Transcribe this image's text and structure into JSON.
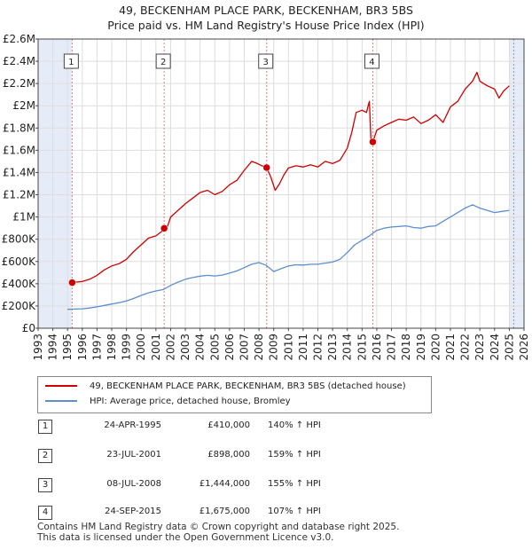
{
  "title_line1": "49, BECKENHAM PLACE PARK, BECKENHAM, BR3 5BS",
  "title_line2": "Price paid vs. HM Land Registry's House Price Index (HPI)",
  "legend": {
    "property_label": "49, BECKENHAM PLACE PARK, BECKENHAM, BR3 5BS (detached house)",
    "hpi_label": "HPI: Average price, detached house, Bromley"
  },
  "colors": {
    "property": "#cc0000",
    "hpi": "#5b8fd0",
    "shade": "#e6ecf7",
    "vline": "#e08080",
    "grid": "#dddddd"
  },
  "sales": [
    {
      "num": "1",
      "date": "24-APR-1995",
      "price": "£410,000",
      "hpi_change": "140% ↑ HPI"
    },
    {
      "num": "2",
      "date": "23-JUL-2001",
      "price": "£898,000",
      "hpi_change": "159% ↑ HPI"
    },
    {
      "num": "3",
      "date": "08-JUL-2008",
      "price": "£1,444,000",
      "hpi_change": "155% ↑ HPI"
    },
    {
      "num": "4",
      "date": "24-SEP-2015",
      "price": "£1,675,000",
      "hpi_change": "107% ↑ HPI"
    }
  ],
  "footer_line1": "Contains HM Land Registry data © Crown copyright and database right 2025.",
  "footer_line2": "This data is licensed under the Open Government Licence v3.0.",
  "chart_data": {
    "type": "line",
    "title": "49, BECKENHAM PLACE PARK, BECKENHAM, BR3 5BS — Price paid vs. HM Land Registry's House Price Index (HPI)",
    "xlabel": "",
    "ylabel": "",
    "xlim": [
      1993,
      2026
    ],
    "ylim": [
      0,
      2600000
    ],
    "x_ticks": [
      1993,
      1994,
      1995,
      1996,
      1997,
      1998,
      1999,
      2000,
      2001,
      2002,
      2003,
      2004,
      2005,
      2006,
      2007,
      2008,
      2009,
      2010,
      2011,
      2012,
      2013,
      2014,
      2015,
      2016,
      2017,
      2018,
      2019,
      2020,
      2021,
      2022,
      2023,
      2024,
      2025,
      2026
    ],
    "y_ticks": [
      {
        "value": 0,
        "label": "£0"
      },
      {
        "value": 200000,
        "label": "£200K"
      },
      {
        "value": 400000,
        "label": "£400K"
      },
      {
        "value": 600000,
        "label": "£600K"
      },
      {
        "value": 800000,
        "label": "£800K"
      },
      {
        "value": 1000000,
        "label": "£1M"
      },
      {
        "value": 1200000,
        "label": "£1.2M"
      },
      {
        "value": 1400000,
        "label": "£1.4M"
      },
      {
        "value": 1600000,
        "label": "£1.6M"
      },
      {
        "value": 1800000,
        "label": "£1.8M"
      },
      {
        "value": 2000000,
        "label": "£2M"
      },
      {
        "value": 2200000,
        "label": "£2.2M"
      },
      {
        "value": 2400000,
        "label": "£2.4M"
      },
      {
        "value": 2600000,
        "label": "£2.6M"
      }
    ],
    "grid": true,
    "shaded_ranges": [
      [
        1993,
        1995.3
      ],
      [
        2025.0,
        2026
      ]
    ],
    "sale_markers": [
      {
        "label": "1",
        "x": 1995.31,
        "y": 410000
      },
      {
        "label": "2",
        "x": 2001.56,
        "y": 898000
      },
      {
        "label": "3",
        "x": 2008.52,
        "y": 1444000
      },
      {
        "label": "4",
        "x": 2015.73,
        "y": 1675000
      }
    ],
    "series": [
      {
        "name": "49, BECKENHAM PLACE PARK, BECKENHAM, BR3 5BS (detached house)",
        "x": [
          1995.31,
          1995.6,
          1996.0,
          1996.5,
          1997.0,
          1997.5,
          1998.0,
          1998.5,
          1999.0,
          1999.5,
          2000.0,
          2000.5,
          2001.0,
          2001.4,
          2001.56,
          2001.8,
          2002.0,
          2002.5,
          2003.0,
          2003.5,
          2004.0,
          2004.5,
          2005.0,
          2005.5,
          2006.0,
          2006.5,
          2007.0,
          2007.5,
          2007.9,
          2008.2,
          2008.52,
          2008.8,
          2009.1,
          2009.4,
          2009.7,
          2010.0,
          2010.5,
          2011.0,
          2011.5,
          2012.0,
          2012.5,
          2013.0,
          2013.5,
          2014.0,
          2014.3,
          2014.6,
          2015.0,
          2015.3,
          2015.5,
          2015.6,
          2015.73,
          2016.0,
          2016.5,
          2017.0,
          2017.5,
          2018.0,
          2018.5,
          2019.0,
          2019.5,
          2020.0,
          2020.5,
          2021.0,
          2021.5,
          2022.0,
          2022.5,
          2022.8,
          2023.0,
          2023.5,
          2024.0,
          2024.3,
          2024.6,
          2025.0
        ],
        "values": [
          410000,
          415000,
          420000,
          440000,
          475000,
          525000,
          560000,
          580000,
          620000,
          690000,
          750000,
          810000,
          830000,
          870000,
          898000,
          920000,
          1000000,
          1060000,
          1120000,
          1170000,
          1220000,
          1240000,
          1200000,
          1230000,
          1290000,
          1330000,
          1420000,
          1500000,
          1480000,
          1460000,
          1444000,
          1360000,
          1240000,
          1300000,
          1380000,
          1440000,
          1460000,
          1450000,
          1470000,
          1450000,
          1500000,
          1480000,
          1510000,
          1620000,
          1760000,
          1940000,
          1960000,
          1940000,
          2040000,
          1700000,
          1675000,
          1780000,
          1820000,
          1850000,
          1880000,
          1870000,
          1900000,
          1840000,
          1870000,
          1920000,
          1850000,
          1990000,
          2040000,
          2150000,
          2220000,
          2300000,
          2220000,
          2180000,
          2150000,
          2070000,
          2130000,
          2180000
        ]
      },
      {
        "name": "HPI: Average price, detached house, Bromley",
        "x": [
          1995.0,
          1995.5,
          1996.0,
          1996.5,
          1997.0,
          1997.5,
          1998.0,
          1998.5,
          1999.0,
          1999.5,
          2000.0,
          2000.5,
          2001.0,
          2001.5,
          2002.0,
          2002.5,
          2003.0,
          2003.5,
          2004.0,
          2004.5,
          2005.0,
          2005.5,
          2006.0,
          2006.5,
          2007.0,
          2007.5,
          2008.0,
          2008.5,
          2009.0,
          2009.5,
          2010.0,
          2010.5,
          2011.0,
          2011.5,
          2012.0,
          2012.5,
          2013.0,
          2013.5,
          2014.0,
          2014.5,
          2015.0,
          2015.5,
          2016.0,
          2016.5,
          2017.0,
          2017.5,
          2018.0,
          2018.5,
          2019.0,
          2019.5,
          2020.0,
          2020.5,
          2021.0,
          2021.5,
          2022.0,
          2022.5,
          2023.0,
          2023.5,
          2024.0,
          2024.5,
          2025.0
        ],
        "values": [
          170000,
          172000,
          175000,
          182000,
          192000,
          205000,
          218000,
          230000,
          245000,
          268000,
          295000,
          318000,
          335000,
          348000,
          385000,
          415000,
          440000,
          455000,
          468000,
          475000,
          470000,
          478000,
          495000,
          515000,
          545000,
          575000,
          590000,
          565000,
          510000,
          535000,
          560000,
          570000,
          568000,
          575000,
          575000,
          585000,
          595000,
          620000,
          680000,
          750000,
          790000,
          830000,
          880000,
          900000,
          910000,
          915000,
          920000,
          905000,
          900000,
          915000,
          920000,
          960000,
          1000000,
          1040000,
          1080000,
          1110000,
          1080000,
          1060000,
          1040000,
          1050000,
          1060000
        ]
      }
    ]
  }
}
